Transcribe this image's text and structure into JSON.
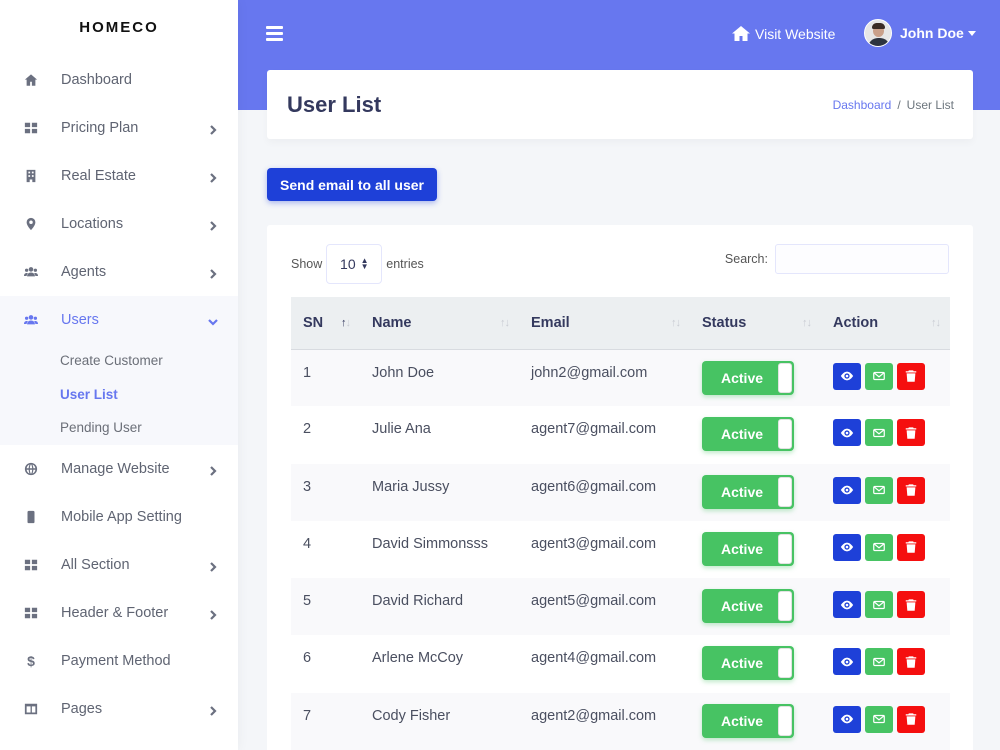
{
  "brand": "HOMECO",
  "sidebar": {
    "items": [
      {
        "label": "Dashboard",
        "icon": "home-icon"
      },
      {
        "label": "Pricing Plan",
        "icon": "grid-icon"
      },
      {
        "label": "Real Estate",
        "icon": "building-icon"
      },
      {
        "label": "Locations",
        "icon": "map-marker-icon"
      },
      {
        "label": "Agents",
        "icon": "users-icon"
      },
      {
        "label": "Users",
        "icon": "users-icon"
      },
      {
        "label": "Manage Website",
        "icon": "globe-icon"
      },
      {
        "label": "Mobile App Setting",
        "icon": "mobile-icon"
      },
      {
        "label": "All Section",
        "icon": "grid-icon"
      },
      {
        "label": "Header & Footer",
        "icon": "grid-icon"
      },
      {
        "label": "Payment Method",
        "icon": "dollar-icon"
      },
      {
        "label": "Pages",
        "icon": "columns-icon"
      }
    ],
    "users_sub": [
      "Create Customer",
      "User List",
      "Pending User"
    ]
  },
  "topbar": {
    "visit_label": "Visit Website",
    "user_name": "John Doe",
    "accent": "#6777ef"
  },
  "page": {
    "title": "User List",
    "breadcrumb": [
      "Dashboard",
      "User List"
    ],
    "send_button": "Send email to all user"
  },
  "table": {
    "show_label": "Show",
    "entries_value": "10",
    "entries_label": "entries",
    "search_label": "Search:",
    "columns": [
      "SN",
      "Name",
      "Email",
      "Status",
      "Action"
    ],
    "rows": [
      {
        "sn": "1",
        "name": "John Doe",
        "email": "john2@gmail.com",
        "status": "Active"
      },
      {
        "sn": "2",
        "name": "Julie Ana",
        "email": "agent7@gmail.com",
        "status": "Active"
      },
      {
        "sn": "3",
        "name": "Maria Jussy",
        "email": "agent6@gmail.com",
        "status": "Active"
      },
      {
        "sn": "4",
        "name": "David Simmonsss",
        "email": "agent3@gmail.com",
        "status": "Active"
      },
      {
        "sn": "5",
        "name": "David Richard",
        "email": "agent5@gmail.com",
        "status": "Active"
      },
      {
        "sn": "6",
        "name": "Arlene McCoy",
        "email": "agent4@gmail.com",
        "status": "Active"
      },
      {
        "sn": "7",
        "name": "Cody Fisher",
        "email": "agent2@gmail.com",
        "status": "Active"
      }
    ]
  }
}
